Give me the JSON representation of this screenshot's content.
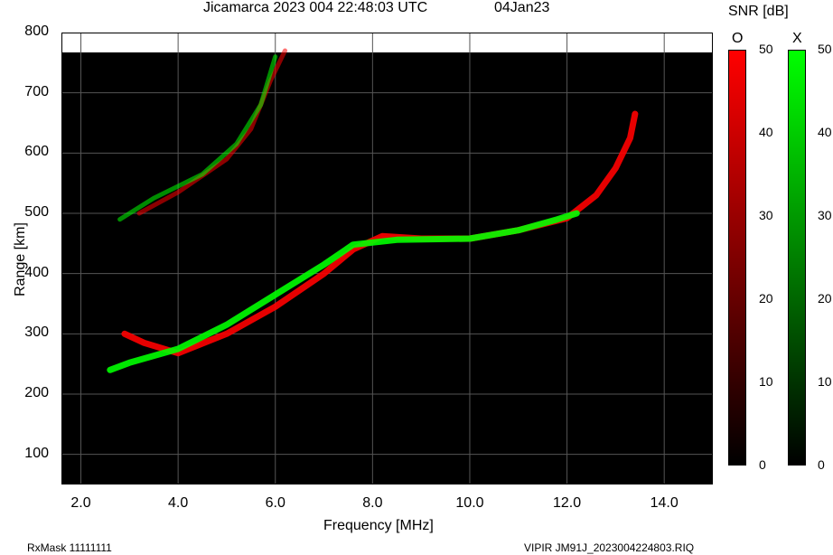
{
  "header": {
    "title": "Jicamarca 2023 004 22:48:03 UTC",
    "date": "04Jan23",
    "snr_label": "SNR [dB]"
  },
  "footer": {
    "rxmask": "RxMask 11111111",
    "file": "VIPIR  JM91J_2023004224803.RIQ"
  },
  "colorbars": [
    {
      "mode": "O",
      "color": "#ff0000",
      "ticks": [
        "50",
        "40",
        "30",
        "20",
        "10",
        "0"
      ]
    },
    {
      "mode": "X",
      "color": "#00ff00",
      "ticks": [
        "50",
        "40",
        "30",
        "20",
        "10",
        "0"
      ]
    }
  ],
  "chart_data": {
    "type": "heatmap",
    "title": "Jicamarca 2023 004 22:48:03 UTC",
    "xlabel": "Frequency [MHz]",
    "ylabel": "Range [km]",
    "xlim": [
      1.6,
      15.0
    ],
    "ylim": [
      50,
      800
    ],
    "xticks": [
      "2.0",
      "4.0",
      "6.0",
      "8.0",
      "10.0",
      "12.0",
      "14.0"
    ],
    "yticks": [
      "100",
      "200",
      "300",
      "400",
      "500",
      "600",
      "700",
      "800"
    ],
    "grid": true,
    "series": [
      {
        "name": "O",
        "color": "#ff0000",
        "points": [
          [
            2.9,
            300
          ],
          [
            3.3,
            285
          ],
          [
            4.0,
            268
          ],
          [
            5.0,
            300
          ],
          [
            6.0,
            345
          ],
          [
            7.0,
            400
          ],
          [
            7.6,
            440
          ],
          [
            8.2,
            462
          ],
          [
            9.0,
            458
          ],
          [
            10.0,
            458
          ],
          [
            11.0,
            472
          ],
          [
            12.0,
            492
          ],
          [
            12.6,
            530
          ],
          [
            13.0,
            575
          ],
          [
            13.3,
            625
          ],
          [
            13.4,
            665
          ]
        ]
      },
      {
        "name": "X",
        "color": "#00ff00",
        "points": [
          [
            2.6,
            240
          ],
          [
            3.0,
            252
          ],
          [
            4.0,
            275
          ],
          [
            5.0,
            315
          ],
          [
            6.0,
            365
          ],
          [
            7.0,
            415
          ],
          [
            7.6,
            448
          ],
          [
            8.5,
            456
          ],
          [
            10.0,
            458
          ],
          [
            11.0,
            472
          ],
          [
            11.8,
            490
          ],
          [
            12.2,
            500
          ]
        ]
      },
      {
        "name": "O",
        "color": "#ff0000",
        "points": [
          [
            3.2,
            500
          ],
          [
            4.0,
            535
          ],
          [
            5.0,
            590
          ],
          [
            5.5,
            640
          ],
          [
            5.9,
            720
          ],
          [
            6.2,
            770
          ]
        ]
      },
      {
        "name": "X",
        "color": "#00ff00",
        "points": [
          [
            2.8,
            490
          ],
          [
            3.5,
            525
          ],
          [
            4.5,
            565
          ],
          [
            5.2,
            615
          ],
          [
            5.7,
            680
          ],
          [
            6.0,
            760
          ]
        ]
      }
    ]
  }
}
